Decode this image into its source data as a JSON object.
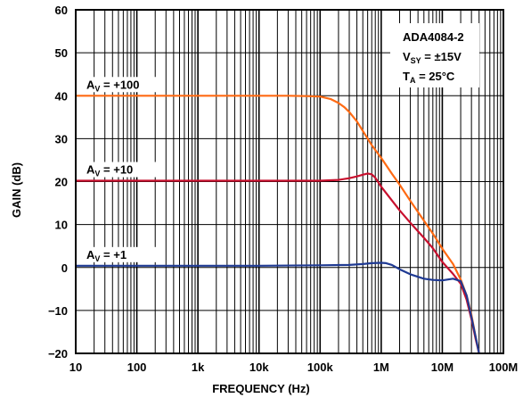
{
  "chart_data": {
    "type": "line",
    "xlabel": "FREQUENCY (Hz)",
    "ylabel": "GAIN (dB)",
    "x_scale": "log",
    "xlim": [
      10,
      100000000
    ],
    "ylim": [
      -20,
      60
    ],
    "grid": true,
    "x_ticks": [
      "10",
      "100",
      "1k",
      "10k",
      "100k",
      "1M",
      "10M",
      "100M"
    ],
    "x_tick_values": [
      10,
      100,
      1000,
      10000,
      100000,
      1000000,
      10000000,
      100000000
    ],
    "y_ticks": [
      "60",
      "50",
      "40",
      "30",
      "20",
      "10",
      "0",
      "−10",
      "−20"
    ],
    "y_tick_values": [
      60,
      50,
      40,
      30,
      20,
      10,
      0,
      -10,
      -20
    ],
    "annotation": {
      "device": "ADA4084-2",
      "vsy_main": "V",
      "vsy_sub": "SY",
      "vsy_rest": " = ±15V",
      "ta_main": "T",
      "ta_sub": "A",
      "ta_rest": " = 25°C"
    },
    "series": [
      {
        "label_main": "A",
        "label_sub": "V",
        "label_rest": " = +100",
        "color": "#ff6a13",
        "x": [
          10,
          100,
          1000,
          10000,
          30000,
          60000,
          100000,
          150000,
          200000,
          250000,
          300000,
          400000,
          500000,
          700000,
          1000000,
          1500000,
          2000000,
          3000000,
          5000000,
          7000000,
          10000000,
          15000000,
          20000000,
          25000000,
          30000000,
          35000000,
          40000000
        ],
        "y": [
          40,
          40,
          40,
          40,
          40,
          39.9,
          39.8,
          39.2,
          38.3,
          37.3,
          36.2,
          34.0,
          31.8,
          28.5,
          25.5,
          21.8,
          19.3,
          15.5,
          10.9,
          7.9,
          4.4,
          0.8,
          -2.8,
          -6.5,
          -11,
          -16,
          -20
        ]
      },
      {
        "label_main": "A",
        "label_sub": "V",
        "label_rest": " = +10",
        "color": "#c8102e",
        "x": [
          10,
          100,
          1000,
          10000,
          100000,
          200000,
          300000,
          400000,
          500000,
          600000,
          700000,
          800000,
          1000000,
          1500000,
          2000000,
          3000000,
          5000000,
          7000000,
          10000000,
          15000000,
          20000000,
          25000000,
          30000000,
          35000000,
          40000000
        ],
        "y": [
          20.2,
          20.2,
          20.2,
          20.2,
          20.2,
          20.4,
          20.8,
          21.2,
          21.6,
          21.9,
          21.7,
          20.9,
          18.8,
          15.6,
          13.3,
          10.4,
          6.9,
          4.5,
          1.3,
          -1.5,
          -3.8,
          -7.5,
          -12,
          -16.5,
          -20
        ]
      },
      {
        "label_main": "A",
        "label_sub": "V",
        "label_rest": " = +1",
        "color": "#1f3a93",
        "x": [
          10,
          100,
          1000,
          10000,
          100000,
          300000,
          500000,
          700000,
          1000000,
          1200000,
          1500000,
          2000000,
          3000000,
          5000000,
          7000000,
          10000000,
          15000000,
          20000000,
          25000000,
          30000000,
          35000000,
          40000000
        ],
        "y": [
          0.4,
          0.4,
          0.4,
          0.4,
          0.5,
          0.6,
          0.8,
          1.0,
          1.1,
          1.0,
          0.6,
          -0.4,
          -1.6,
          -2.6,
          -2.9,
          -3.0,
          -2.6,
          -3.2,
          -6.5,
          -11.5,
          -16,
          -20
        ]
      }
    ]
  }
}
